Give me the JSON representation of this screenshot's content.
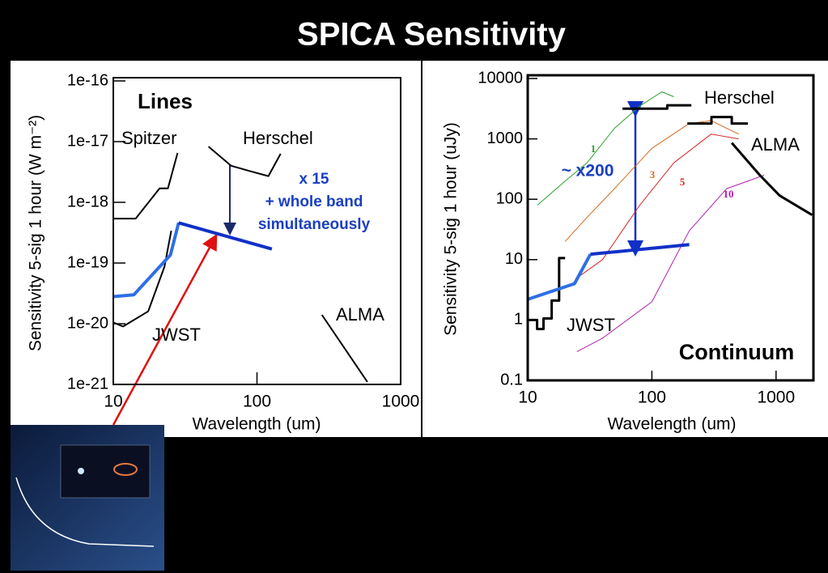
{
  "title": "SPICA Sensitivity",
  "chart_data": [
    {
      "type": "line",
      "xlog": true,
      "ylog": true,
      "xlabel": "Wavelength (um)",
      "ylabel": "Sensitivity 5-sig  1 hour (W m⁻²)",
      "xlim": [
        10,
        1000
      ],
      "ylim": [
        1e-21,
        1e-16
      ],
      "xticks": [
        10,
        100,
        1000
      ],
      "yticks": [
        {
          "value": 1e-21,
          "label": "1e-21"
        },
        {
          "value": 1e-20,
          "label": "1e-20"
        },
        {
          "value": 1e-19,
          "label": "1e-19"
        },
        {
          "value": 1e-18,
          "label": "1e-18"
        },
        {
          "value": 1e-17,
          "label": "1e-17"
        },
        {
          "value": 1e-16,
          "label": "1e-16"
        }
      ],
      "annotations": [
        "Lines",
        "x 15",
        "+ whole band",
        "simultaneously"
      ],
      "series": [
        {
          "name": "Spitzer",
          "color": "#000000",
          "x": [
            10,
            14.3,
            21,
            24,
            28
          ],
          "values": [
            5.4e-19,
            5.4e-19,
            1.7e-18,
            1.7e-18,
            6.5e-18
          ]
        },
        {
          "name": "Herschel",
          "color": "#000000",
          "x": [
            46,
            66,
            92,
            120,
            146
          ],
          "values": [
            8.3e-18,
            4e-18,
            3.2e-18,
            2.7e-18,
            6.3e-18
          ]
        },
        {
          "name": "ALMA",
          "color": "#000000",
          "x": [
            283,
            587
          ],
          "values": [
            1.4e-20,
            1.1e-21
          ]
        },
        {
          "name": "JWST",
          "color": "#000000",
          "x": [
            10,
            11.7,
            17.5,
            22.7,
            25.3
          ],
          "values": [
            1.05e-20,
            9e-21,
            1.6e-20,
            8.7e-20,
            3.4e-19
          ]
        },
        {
          "color": "#2f6fe6",
          "x": [
            10,
            13.9,
            25,
            28.5
          ],
          "values": [
            2.8e-20,
            3e-20,
            1.36e-19,
            4.6e-19
          ]
        },
        {
          "color": "#1030c8",
          "x": [
            28.5,
            127
          ],
          "values": [
            4.6e-19,
            1.7e-19
          ]
        }
      ]
    },
    {
      "type": "line",
      "xlog": true,
      "ylog": true,
      "xlabel": "Wavelength (um)",
      "ylabel": "Sensitivity 5-sig  1 hour (uJy)",
      "xlim": [
        10,
        2000
      ],
      "ylim": [
        0.1,
        10000
      ],
      "xticks": [
        10,
        100,
        1000
      ],
      "yticks": [
        0.1,
        1,
        10,
        100,
        1000,
        10000
      ],
      "annotations": [
        "~ x200",
        "Continuum"
      ],
      "series": [
        {
          "name": "1",
          "color": "#2ca02c",
          "x": [
            12,
            20,
            30,
            50,
            80,
            120,
            150
          ],
          "values": [
            80,
            200,
            400,
            1500,
            3500,
            6000,
            5000
          ]
        },
        {
          "name": "3",
          "color": "#d2691e",
          "x": [
            20,
            30,
            50,
            100,
            200,
            300,
            500
          ],
          "values": [
            20,
            50,
            150,
            700,
            1800,
            2000,
            1200
          ]
        },
        {
          "name": "5",
          "color": "#d62728",
          "x": [
            25,
            40,
            80,
            150,
            300,
            500
          ],
          "values": [
            5,
            10,
            80,
            400,
            1200,
            1000
          ]
        },
        {
          "name": "10",
          "color": "#b01fb0",
          "x": [
            25,
            40,
            100,
            200,
            400,
            800
          ],
          "values": [
            0.3,
            0.5,
            2,
            30,
            150,
            250
          ]
        },
        {
          "name": "Herschel",
          "color": "#000000",
          "x": [
            58,
            133,
            133,
            208,
            200,
            193,
            302,
            302,
            440,
            440,
            593
          ],
          "values": [
            3160,
            3160,
            3600,
            3600,
            null,
            1800,
            1800,
            2300,
            2300,
            1800,
            1800
          ]
        },
        {
          "name": "ALMA",
          "color": "#000000",
          "x": [
            440,
            740,
            1070,
            1950
          ],
          "values": [
            860,
            250,
            115,
            55
          ]
        },
        {
          "name": "JWST",
          "color": "#000000",
          "x": [
            10,
            11.9,
            11.9,
            13.4,
            13.4,
            15.6,
            15.6,
            17.9,
            17.9,
            20
          ],
          "values": [
            1,
            1,
            0.71,
            0.71,
            1.06,
            1.06,
            2.1,
            2.1,
            10.6,
            10.6
          ]
        },
        {
          "color": "#2f6fe6",
          "x": [
            10,
            23.8,
            32
          ],
          "values": [
            2.2,
            4,
            12.3
          ]
        },
        {
          "color": "#1030c8",
          "x": [
            32,
            200
          ],
          "values": [
            12.3,
            17.7
          ]
        }
      ]
    }
  ]
}
